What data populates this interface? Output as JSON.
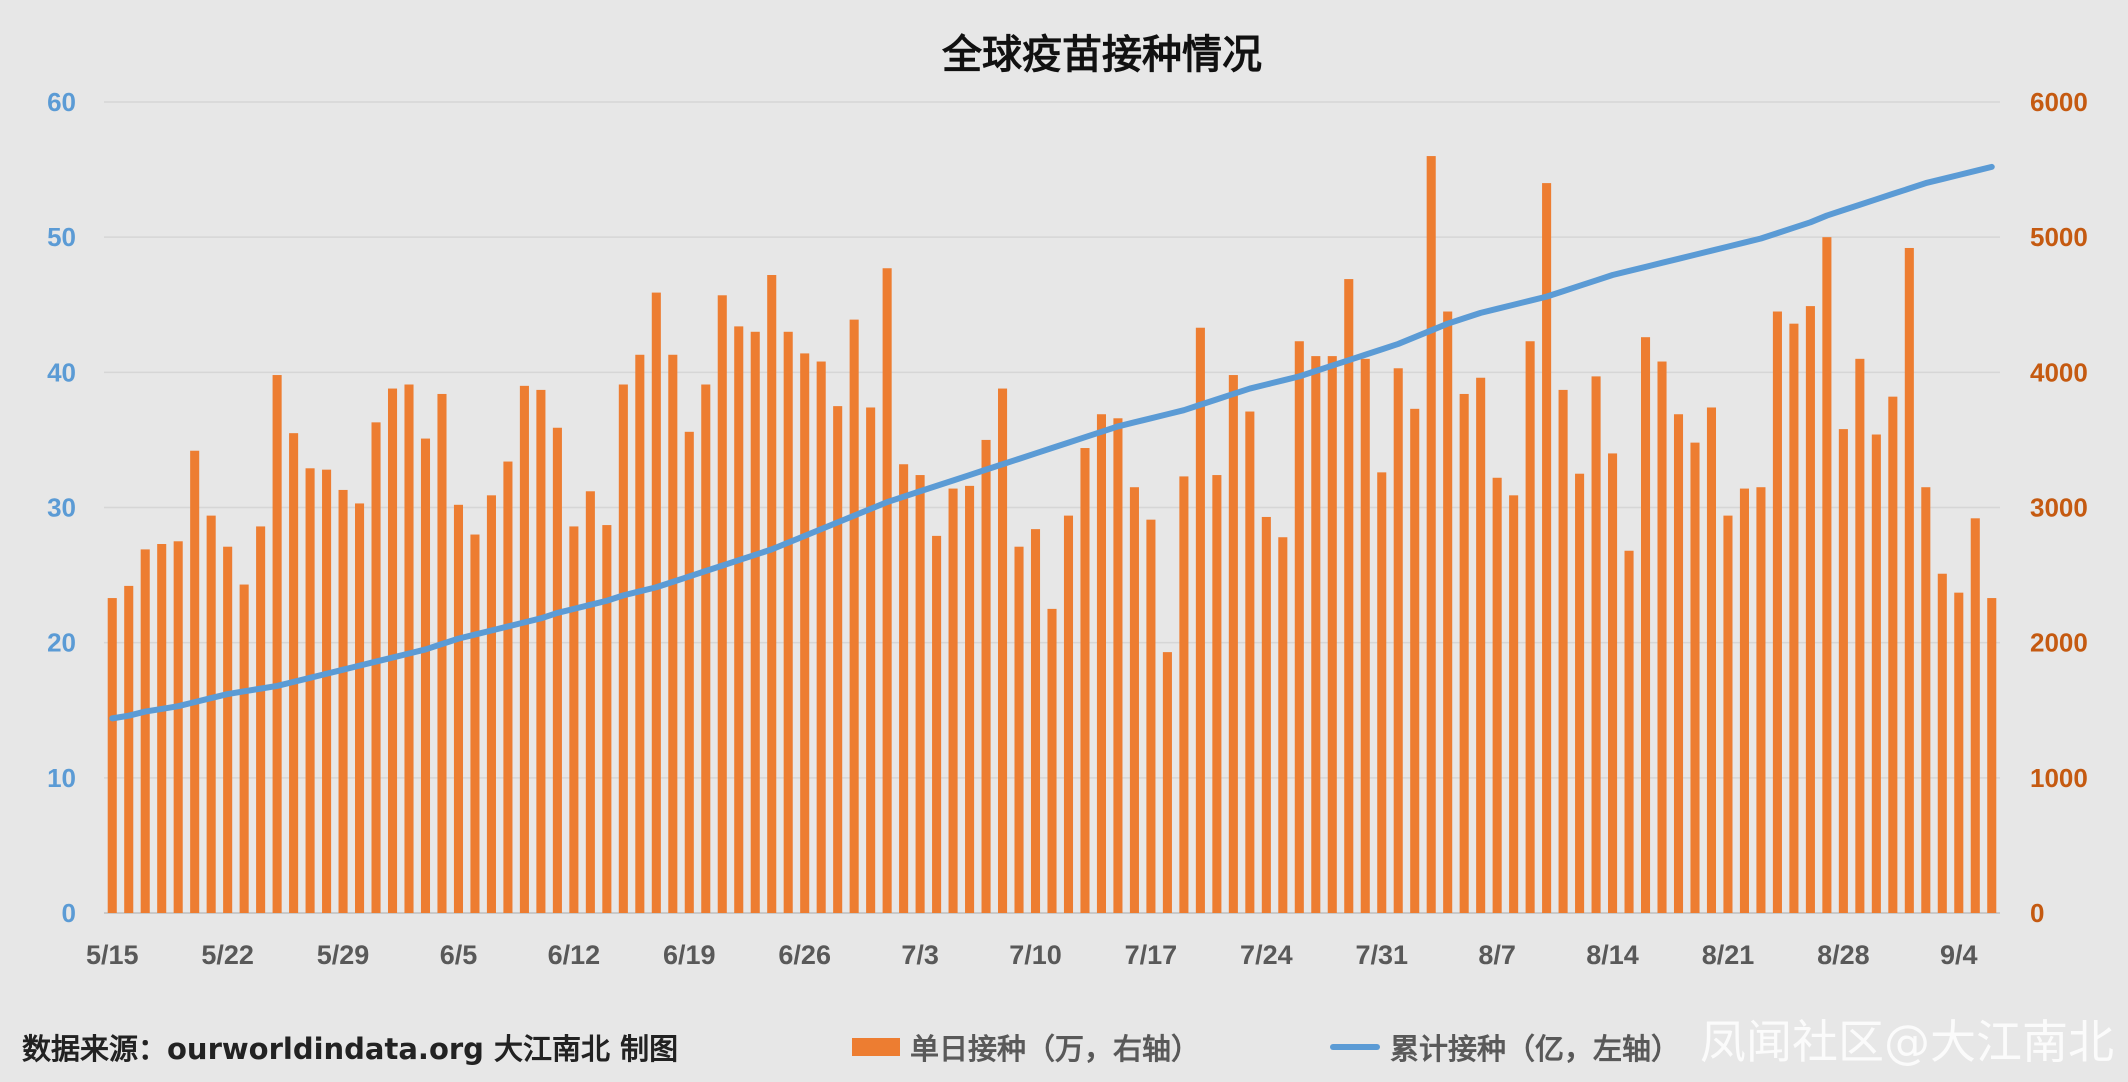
{
  "chart_data": {
    "type": "bar+line",
    "title": "全球疫苗接种情况",
    "x_ticks": [
      "5/15",
      "5/22",
      "5/29",
      "6/5",
      "6/12",
      "6/19",
      "6/26",
      "7/3",
      "7/10",
      "7/17",
      "7/24",
      "7/31",
      "8/7",
      "8/14",
      "8/21",
      "8/28",
      "9/4"
    ],
    "y_left": {
      "min": 0,
      "max": 60,
      "step": 10,
      "ticks": [
        "0",
        "10",
        "20",
        "30",
        "40",
        "50",
        "60"
      ]
    },
    "y_right": {
      "min": 0,
      "max": 6000,
      "step": 1000,
      "ticks": [
        "0",
        "1000",
        "2000",
        "3000",
        "4000",
        "5000",
        "6000"
      ]
    },
    "grid": true,
    "legend_position": "bottom",
    "series": [
      {
        "name": "单日接种（万，右轴）",
        "type": "bar",
        "axis": "right",
        "color": "#ed7d31",
        "values": [
          2330,
          2420,
          2690,
          2730,
          2750,
          3420,
          2940,
          2710,
          2430,
          2860,
          3980,
          3550,
          3290,
          3280,
          3130,
          3030,
          3630,
          3880,
          3910,
          3510,
          3840,
          3020,
          2800,
          3090,
          3340,
          3900,
          3870,
          3590,
          2860,
          3120,
          2870,
          3910,
          4130,
          4590,
          4130,
          3560,
          3910,
          4570,
          4340,
          4300,
          4720,
          4300,
          4140,
          4080,
          3750,
          4390,
          3740,
          4770,
          3320,
          3240,
          2790,
          3140,
          3160,
          3500,
          3880,
          2710,
          2840,
          2250,
          2940,
          3440,
          3690,
          3660,
          3150,
          2910,
          1930,
          3230,
          4330,
          3240,
          3980,
          3710,
          2930,
          2780,
          4230,
          4120,
          4120,
          4690,
          4100,
          3260,
          4030,
          3730,
          5600,
          4450,
          3840,
          3960,
          3220,
          3090,
          4230,
          5400,
          3870,
          3250,
          3970,
          3400,
          2680,
          4260,
          4080,
          3690,
          3480,
          3740,
          2940,
          3140,
          3150,
          4450,
          4360,
          4490,
          5000,
          3580,
          4100,
          3540,
          3820,
          4920,
          3150,
          2510,
          2370,
          2920,
          2330
        ]
      },
      {
        "name": "累计接种（亿，左轴）",
        "type": "line",
        "axis": "left",
        "color": "#5b9bd5",
        "values": [
          14.4,
          14.6,
          14.9,
          15.1,
          15.3,
          15.6,
          15.9,
          16.2,
          16.4,
          16.6,
          16.8,
          17.1,
          17.4,
          17.7,
          18.0,
          18.3,
          18.6,
          18.9,
          19.2,
          19.5,
          19.9,
          20.3,
          20.6,
          20.9,
          21.2,
          21.5,
          21.8,
          22.2,
          22.5,
          22.8,
          23.1,
          23.5,
          23.8,
          24.1,
          24.5,
          24.9,
          25.3,
          25.7,
          26.1,
          26.5,
          26.9,
          27.4,
          27.9,
          28.4,
          28.9,
          29.4,
          29.9,
          30.4,
          30.8,
          31.2,
          31.6,
          32.0,
          32.4,
          32.8,
          33.2,
          33.6,
          34.0,
          34.4,
          34.8,
          35.2,
          35.6,
          36.0,
          36.3,
          36.6,
          36.9,
          37.2,
          37.6,
          38.0,
          38.4,
          38.8,
          39.1,
          39.4,
          39.7,
          40.1,
          40.5,
          40.9,
          41.3,
          41.7,
          42.1,
          42.6,
          43.1,
          43.6,
          44.0,
          44.4,
          44.7,
          45.0,
          45.3,
          45.6,
          46.0,
          46.4,
          46.8,
          47.2,
          47.5,
          47.8,
          48.1,
          48.4,
          48.7,
          49.0,
          49.3,
          49.6,
          49.9,
          50.3,
          50.7,
          51.1,
          51.6,
          52.0,
          52.4,
          52.8,
          53.2,
          53.6,
          54.0,
          54.3,
          54.6,
          54.9,
          55.2
        ]
      }
    ]
  },
  "footer": {
    "source": "数据来源：ourworldindata.org   大江南北 制图"
  },
  "legend": {
    "bar_label": "单日接种（万，右轴）",
    "line_label": "累计接种（亿，左轴）"
  },
  "watermark": "凤闻社区@大江南北"
}
